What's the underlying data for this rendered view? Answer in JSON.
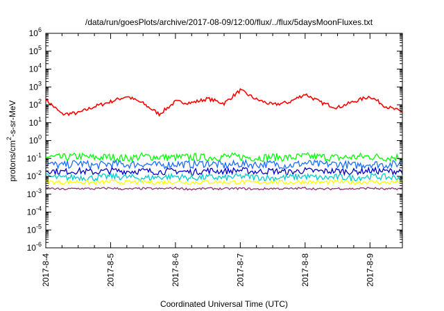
{
  "chart_data": {
    "type": "line",
    "title": "/data/run/goesPlots/archive/2017-08-09/12:00/flux/../flux/5daysMoonFluxes.txt",
    "xlabel": "Coordinated Universal Time (UTC)",
    "ylabel": "protons/cm²-s-sr-MeV",
    "ylabel_parts": {
      "base": "protons/cm",
      "sup": "2",
      "rest": "-s-sr-MeV"
    },
    "yscale": "log",
    "ylim": [
      1e-06,
      1000000.0
    ],
    "xlim": [
      "2017-08-04 00:00",
      "2017-08-09 12:00"
    ],
    "x_ticks": [
      "2017-8-4",
      "2017-8-5",
      "2017-8-6",
      "2017-8-7",
      "2017-8-8",
      "2017-8-9"
    ],
    "y_ticks": [
      {
        "base": "10",
        "exp": "-6"
      },
      {
        "base": "10",
        "exp": "-5"
      },
      {
        "base": "10",
        "exp": "-4"
      },
      {
        "base": "10",
        "exp": "-3"
      },
      {
        "base": "10",
        "exp": "-2"
      },
      {
        "base": "10",
        "exp": "-1"
      },
      {
        "base": "10",
        "exp": "0"
      },
      {
        "base": "10",
        "exp": "1"
      },
      {
        "base": "10",
        "exp": "2"
      },
      {
        "base": "10",
        "exp": "3"
      },
      {
        "base": "10",
        "exp": "4"
      },
      {
        "base": "10",
        "exp": "5"
      },
      {
        "base": "10",
        "exp": "6"
      }
    ],
    "grid": false,
    "legend": "none",
    "x_hours": [
      0,
      6,
      12,
      18,
      24,
      30,
      36,
      42,
      48,
      54,
      60,
      66,
      72,
      78,
      84,
      90,
      96,
      102,
      108,
      114,
      120,
      126,
      132
    ],
    "series": [
      {
        "color": "#ff0000",
        "values": [
          200,
          30,
          35,
          80,
          150,
          300,
          120,
          30,
          150,
          130,
          220,
          120,
          650,
          200,
          100,
          140,
          400,
          130,
          70,
          150,
          300,
          80,
          40
        ]
      },
      {
        "color": "#00ff00",
        "values": [
          0.12,
          0.11,
          0.13,
          0.11,
          0.12,
          0.1,
          0.13,
          0.12,
          0.11,
          0.12,
          0.11,
          0.13,
          0.12,
          0.11,
          0.12,
          0.11,
          0.13,
          0.12,
          0.11,
          0.12,
          0.13,
          0.11,
          0.12
        ]
      },
      {
        "color": "#1a6eff",
        "values": [
          0.05,
          0.04,
          0.055,
          0.04,
          0.05,
          0.045,
          0.05,
          0.04,
          0.05,
          0.045,
          0.055,
          0.04,
          0.05,
          0.045,
          0.05,
          0.04,
          0.055,
          0.045,
          0.05,
          0.04,
          0.05,
          0.045,
          0.05
        ]
      },
      {
        "color": "#0000c8",
        "values": [
          0.022,
          0.018,
          0.02,
          0.017,
          0.021,
          0.019,
          0.02,
          0.018,
          0.02,
          0.017,
          0.021,
          0.019,
          0.022,
          0.018,
          0.02,
          0.017,
          0.021,
          0.019,
          0.02,
          0.018,
          0.021,
          0.019,
          0.02
        ]
      },
      {
        "color": "#00cccc",
        "values": [
          0.01,
          0.008,
          0.009,
          0.008,
          0.01,
          0.009,
          0.008,
          0.009,
          0.01,
          0.008,
          0.009,
          0.008,
          0.01,
          0.009,
          0.008,
          0.009,
          0.01,
          0.008,
          0.009,
          0.008,
          0.01,
          0.009,
          0.008
        ]
      },
      {
        "color": "#ffff00",
        "values": [
          0.005,
          0.0045,
          0.005,
          0.0042,
          0.005,
          0.0046,
          0.0048,
          0.0045,
          0.005,
          0.0044,
          0.005,
          0.0046,
          0.0048,
          0.0045,
          0.005,
          0.0044,
          0.005,
          0.0046,
          0.0048,
          0.0045,
          0.005,
          0.0044,
          0.005
        ]
      },
      {
        "color": "#8b2e6e",
        "values": [
          0.0022,
          0.0019,
          0.0021,
          0.002,
          0.0022,
          0.0019,
          0.0021,
          0.002,
          0.0022,
          0.0019,
          0.0021,
          0.002,
          0.0021,
          0.0019,
          0.0021,
          0.002,
          0.0022,
          0.0019,
          0.0021,
          0.002,
          0.0022,
          0.0019,
          0.0021
        ]
      }
    ]
  }
}
